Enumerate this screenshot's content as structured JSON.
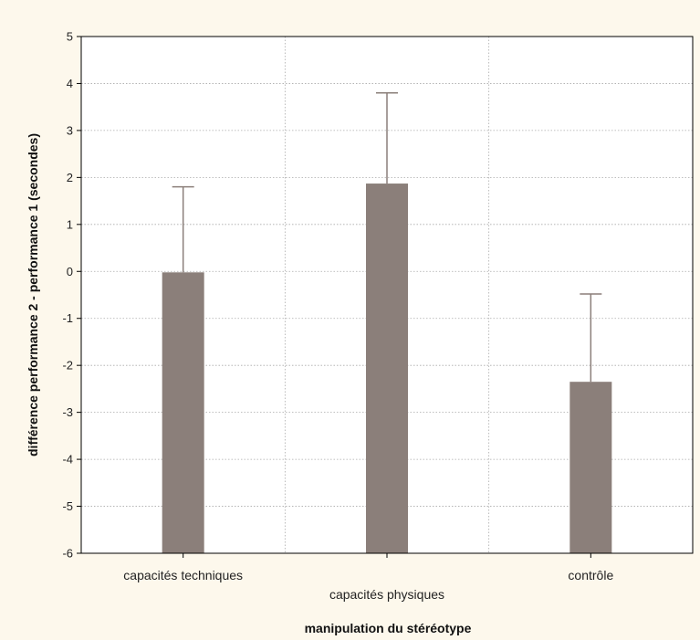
{
  "chart_data": {
    "type": "bar",
    "title": "",
    "xlabel": "manipulation du stéréotype",
    "ylabel": "différence performance 2 - performance 1 (secondes)",
    "ylim": [
      -6,
      5
    ],
    "yticks": [
      5,
      4,
      3,
      2,
      1,
      0,
      -1,
      -2,
      -3,
      -4,
      -5,
      -6
    ],
    "categories": [
      "capacités techniques",
      "capacités physiques",
      "contrôle"
    ],
    "values": [
      -0.02,
      1.87,
      -2.35
    ],
    "error_upper": [
      1.8,
      3.8,
      -0.48
    ],
    "grid": true,
    "colors": {
      "bar": "#8b7f7a",
      "background": "#fdf8ec",
      "plot_area": "#ffffff",
      "grid": "#aaaaaa",
      "error_bar": "#8b7f7a"
    }
  }
}
